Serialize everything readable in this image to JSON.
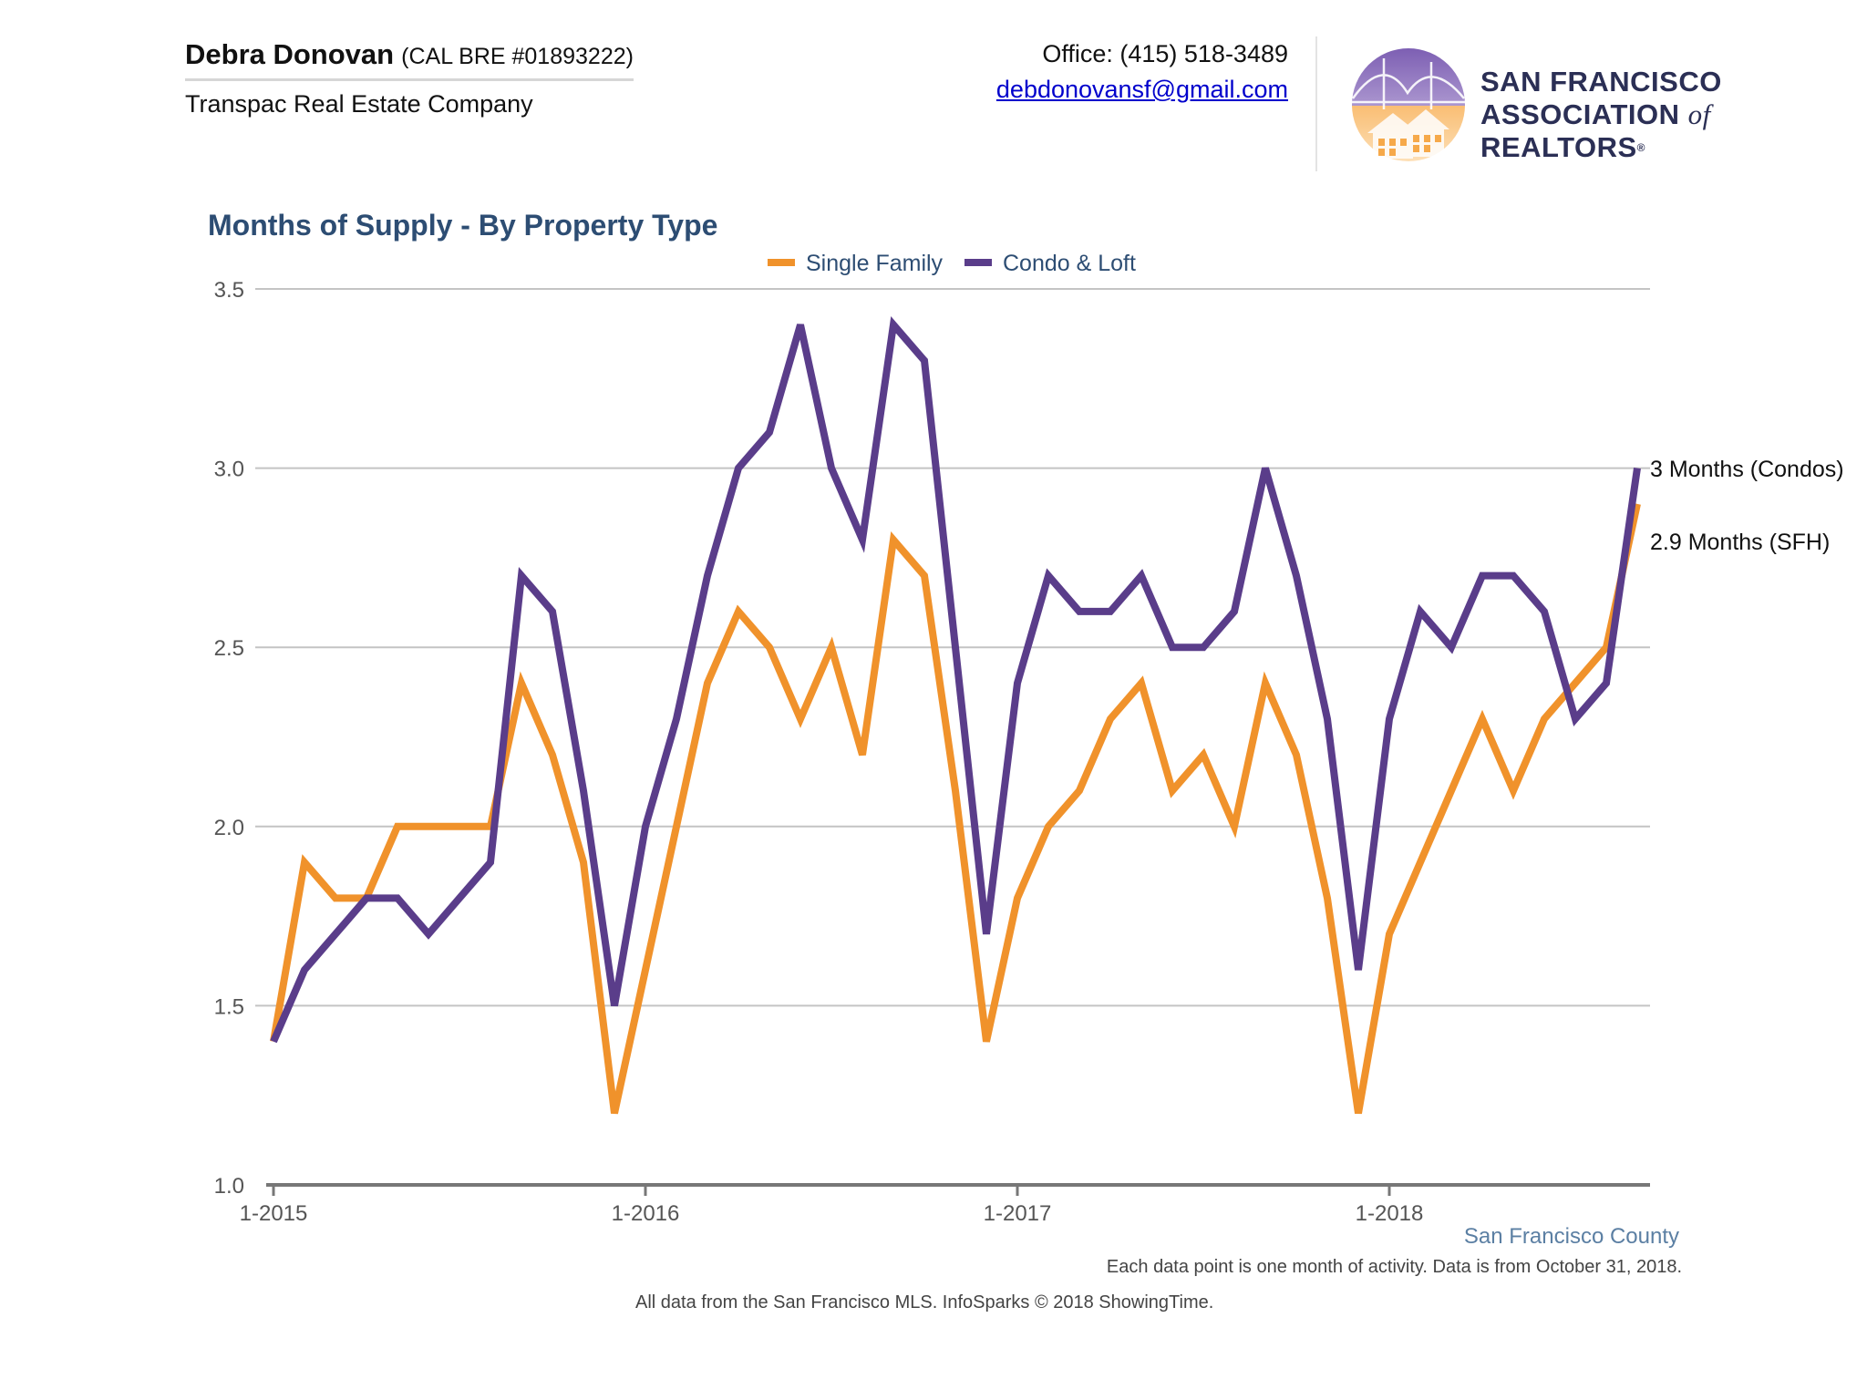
{
  "header": {
    "agent_name": "Debra Donovan",
    "agent_license": "(CAL BRE #01893222)",
    "company": "Transpac Real Estate Company",
    "phone": "Office: (415) 518-3489",
    "email": "debdonovansf@gmail.com",
    "logo": {
      "line1": "SAN FRANCISCO",
      "line2_a": "ASSOCIATION",
      "line2_of": "of",
      "line2_b": "REALTORS",
      "registered": "®",
      "icon": "golden-gate-bridge-house-logo-icon"
    }
  },
  "chart_data": {
    "type": "line",
    "title": "Months of Supply - By Property Type",
    "xlabel": "",
    "ylabel": "",
    "ylim": [
      1.0,
      3.5
    ],
    "yticks": [
      "1.0",
      "1.5",
      "2.0",
      "2.5",
      "3.0",
      "3.5"
    ],
    "xticks": [
      "1-2015",
      "1-2016",
      "1-2017",
      "1-2018"
    ],
    "x_start": "1-2015",
    "x_end": "9-2018",
    "grid": true,
    "legend": "top-center",
    "series": [
      {
        "name": "Single Family",
        "color": "#f0922b",
        "values": [
          1.4,
          1.9,
          1.8,
          1.8,
          2.0,
          2.0,
          2.0,
          2.0,
          2.4,
          2.2,
          1.9,
          1.2,
          1.6,
          2.0,
          2.4,
          2.6,
          2.5,
          2.3,
          2.5,
          2.2,
          2.8,
          2.7,
          2.1,
          1.4,
          1.8,
          2.0,
          2.1,
          2.3,
          2.4,
          2.1,
          2.2,
          2.0,
          2.4,
          2.2,
          1.8,
          1.2,
          1.7,
          1.9,
          2.1,
          2.3,
          2.1,
          2.3,
          2.4,
          2.5,
          2.9
        ]
      },
      {
        "name": "Condo & Loft",
        "color": "#5a3d8a",
        "values": [
          1.4,
          1.6,
          1.7,
          1.8,
          1.8,
          1.7,
          1.8,
          1.9,
          2.7,
          2.6,
          2.1,
          1.5,
          2.0,
          2.3,
          2.7,
          3.0,
          3.1,
          3.4,
          3.0,
          2.8,
          3.4,
          3.3,
          2.5,
          1.7,
          2.4,
          2.7,
          2.6,
          2.6,
          2.7,
          2.5,
          2.5,
          2.6,
          3.0,
          2.7,
          2.3,
          1.6,
          2.3,
          2.6,
          2.5,
          2.7,
          2.7,
          2.6,
          2.3,
          2.4,
          3.0
        ]
      }
    ],
    "annotations": [
      {
        "text": "3 Months (Condos)",
        "series": "Condo & Loft"
      },
      {
        "text": "2.9 Months (SFH)",
        "series": "Single Family"
      }
    ],
    "region_label": "San Francisco County"
  },
  "footer": {
    "note": "Each data point is one month of activity. Data is from October 31, 2018.",
    "source": "All data from the San Francisco MLS. InfoSparks © 2018 ShowingTime."
  }
}
